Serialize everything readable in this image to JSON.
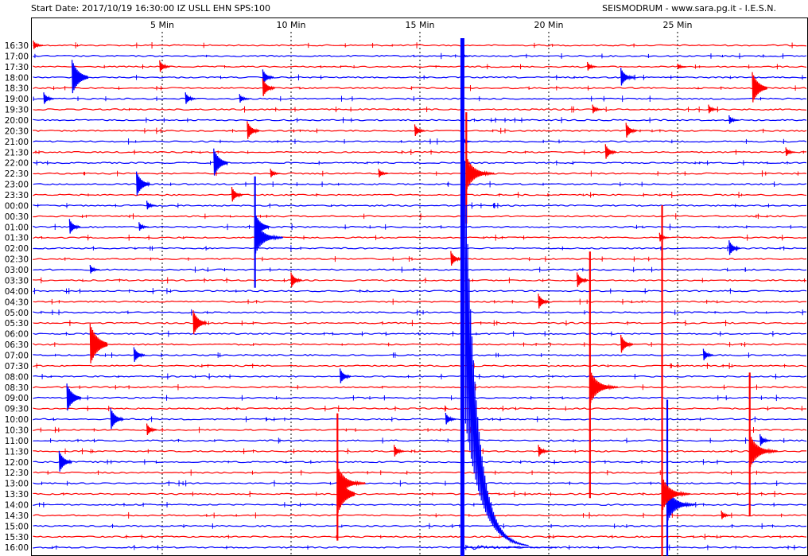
{
  "header": {
    "start_info": "Start Date: 2017/10/19 16:30:00 IZ USLL EHN SPS:100",
    "credit": "SEISMODRUM - www.sara.pg.it - I.E.S.N."
  },
  "colors": {
    "trace_a": "#ff0000",
    "trace_b": "#0000ff",
    "grid": "#000000",
    "background": "#ffffff"
  },
  "chart_data": {
    "type": "line",
    "title": "",
    "xlabel": "",
    "ylabel": "",
    "x_unit": "Min",
    "xlim": [
      0,
      30
    ],
    "x_ticks": [
      {
        "value": 5,
        "label": "5 Min"
      },
      {
        "value": 10,
        "label": "10 Min"
      },
      {
        "value": 15,
        "label": "15 Min"
      },
      {
        "value": 20,
        "label": "20 Min"
      },
      {
        "value": 25,
        "label": "25 Min"
      }
    ],
    "grid_x": "dashed vertical at 5-minute intervals",
    "rows": [
      {
        "label": "16:30",
        "color": "red"
      },
      {
        "label": "17:00",
        "color": "blue"
      },
      {
        "label": "17:30",
        "color": "red"
      },
      {
        "label": "18:00",
        "color": "blue"
      },
      {
        "label": "18:30",
        "color": "red"
      },
      {
        "label": "19:00",
        "color": "blue"
      },
      {
        "label": "19:30",
        "color": "red"
      },
      {
        "label": "20:00",
        "color": "blue"
      },
      {
        "label": "20:30",
        "color": "red"
      },
      {
        "label": "21:00",
        "color": "blue"
      },
      {
        "label": "21:30",
        "color": "red"
      },
      {
        "label": "22:00",
        "color": "blue"
      },
      {
        "label": "22:30",
        "color": "red"
      },
      {
        "label": "23:00",
        "color": "blue"
      },
      {
        "label": "23:30",
        "color": "red"
      },
      {
        "label": "00:00",
        "color": "blue"
      },
      {
        "label": "00:30",
        "color": "red"
      },
      {
        "label": "01:00",
        "color": "blue"
      },
      {
        "label": "01:30",
        "color": "red"
      },
      {
        "label": "02:00",
        "color": "blue"
      },
      {
        "label": "02:30",
        "color": "red"
      },
      {
        "label": "03:00",
        "color": "blue"
      },
      {
        "label": "03:30",
        "color": "red"
      },
      {
        "label": "04:00",
        "color": "blue"
      },
      {
        "label": "04:30",
        "color": "red"
      },
      {
        "label": "05:00",
        "color": "blue"
      },
      {
        "label": "05:30",
        "color": "red"
      },
      {
        "label": "06:00",
        "color": "blue"
      },
      {
        "label": "06:30",
        "color": "red"
      },
      {
        "label": "07:00",
        "color": "blue"
      },
      {
        "label": "07:30",
        "color": "red"
      },
      {
        "label": "08:00",
        "color": "blue"
      },
      {
        "label": "08:30",
        "color": "red"
      },
      {
        "label": "09:00",
        "color": "blue"
      },
      {
        "label": "09:30",
        "color": "red"
      },
      {
        "label": "10:00",
        "color": "blue"
      },
      {
        "label": "10:30",
        "color": "red"
      },
      {
        "label": "11:00",
        "color": "blue"
      },
      {
        "label": "11:30",
        "color": "red"
      },
      {
        "label": "12:00",
        "color": "blue"
      },
      {
        "label": "12:30",
        "color": "red"
      },
      {
        "label": "13:00",
        "color": "blue"
      },
      {
        "label": "13:30",
        "color": "red"
      },
      {
        "label": "14:00",
        "color": "blue"
      },
      {
        "label": "14:30",
        "color": "red"
      },
      {
        "label": "15:00",
        "color": "blue"
      },
      {
        "label": "15:30",
        "color": "red"
      },
      {
        "label": "16:00",
        "color": "blue"
      }
    ],
    "events": [
      {
        "row": 0,
        "minute": 0.0,
        "amp": 6
      },
      {
        "row": 1,
        "minute": 16.6,
        "amp": 4
      },
      {
        "row": 2,
        "minute": 4.9,
        "amp": 8
      },
      {
        "row": 2,
        "minute": 21.5,
        "amp": 6
      },
      {
        "row": 2,
        "minute": 25.0,
        "amp": 4
      },
      {
        "row": 3,
        "minute": 1.5,
        "amp": 22
      },
      {
        "row": 3,
        "minute": 8.9,
        "amp": 10
      },
      {
        "row": 3,
        "minute": 22.8,
        "amp": 12
      },
      {
        "row": 4,
        "minute": 8.9,
        "amp": 12
      },
      {
        "row": 4,
        "minute": 27.9,
        "amp": 20
      },
      {
        "row": 5,
        "minute": 0.4,
        "amp": 8
      },
      {
        "row": 5,
        "minute": 5.9,
        "amp": 8
      },
      {
        "row": 5,
        "minute": 8.0,
        "amp": 6
      },
      {
        "row": 6,
        "minute": 21.7,
        "amp": 6
      },
      {
        "row": 6,
        "minute": 26.2,
        "amp": 6
      },
      {
        "row": 7,
        "minute": 27.0,
        "amp": 6
      },
      {
        "row": 8,
        "minute": 8.3,
        "amp": 12
      },
      {
        "row": 8,
        "minute": 14.8,
        "amp": 8
      },
      {
        "row": 8,
        "minute": 23.0,
        "amp": 10
      },
      {
        "row": 9,
        "minute": 16.6,
        "amp": 6
      },
      {
        "row": 10,
        "minute": 22.2,
        "amp": 10
      },
      {
        "row": 10,
        "minute": 29.2,
        "amp": 6
      },
      {
        "row": 11,
        "minute": 7.0,
        "amp": 18
      },
      {
        "row": 12,
        "minute": 9.2,
        "amp": 6
      },
      {
        "row": 12,
        "minute": 13.4,
        "amp": 6
      },
      {
        "row": 13,
        "minute": 4.0,
        "amp": 16
      },
      {
        "row": 14,
        "minute": 7.7,
        "amp": 10
      },
      {
        "row": 15,
        "minute": 4.4,
        "amp": 6
      },
      {
        "row": 17,
        "minute": 1.4,
        "amp": 10
      },
      {
        "row": 17,
        "minute": 4.1,
        "amp": 6
      },
      {
        "row": 17,
        "minute": 8.6,
        "amp": 18
      },
      {
        "row": 18,
        "minute": 24.3,
        "amp": 6
      },
      {
        "row": 19,
        "minute": 27.0,
        "amp": 10
      },
      {
        "row": 20,
        "minute": 16.2,
        "amp": 10
      },
      {
        "row": 21,
        "minute": 2.2,
        "amp": 6
      },
      {
        "row": 22,
        "minute": 10.0,
        "amp": 10
      },
      {
        "row": 22,
        "minute": 21.1,
        "amp": 10
      },
      {
        "row": 24,
        "minute": 19.6,
        "amp": 10
      },
      {
        "row": 26,
        "minute": 6.2,
        "amp": 16
      },
      {
        "row": 28,
        "minute": 2.2,
        "amp": 26
      },
      {
        "row": 28,
        "minute": 22.8,
        "amp": 12
      },
      {
        "row": 29,
        "minute": 3.9,
        "amp": 10
      },
      {
        "row": 29,
        "minute": 26.0,
        "amp": 8
      },
      {
        "row": 31,
        "minute": 11.9,
        "amp": 10
      },
      {
        "row": 33,
        "minute": 1.3,
        "amp": 18
      },
      {
        "row": 35,
        "minute": 3.0,
        "amp": 14
      },
      {
        "row": 35,
        "minute": 16.0,
        "amp": 8
      },
      {
        "row": 36,
        "minute": 4.4,
        "amp": 8
      },
      {
        "row": 37,
        "minute": 28.2,
        "amp": 8
      },
      {
        "row": 38,
        "minute": 14.0,
        "amp": 8
      },
      {
        "row": 38,
        "minute": 19.6,
        "amp": 8
      },
      {
        "row": 39,
        "minute": 1.0,
        "amp": 14
      },
      {
        "row": 42,
        "minute": 11.8,
        "amp": 26
      },
      {
        "row": 44,
        "minute": 26.7,
        "amp": 6
      }
    ],
    "long_events": [
      {
        "row": 18,
        "minute": 8.6,
        "color": "blue",
        "height": 140
      },
      {
        "row": 41,
        "minute": 11.8,
        "color": "red",
        "height": 160
      },
      {
        "row": 32,
        "minute": 21.6,
        "color": "red",
        "height": 310
      },
      {
        "row": 38,
        "minute": 27.8,
        "color": "red",
        "height": 180
      },
      {
        "row": 43,
        "minute": 24.6,
        "color": "blue",
        "height": 240
      },
      {
        "row": 42,
        "minute": 24.4,
        "color": "red",
        "height": 660
      },
      {
        "row": 12,
        "minute": 16.8,
        "color": "red",
        "height": 140
      }
    ],
    "dominant_event": {
      "minute": 16.65,
      "color": "blue",
      "coda_to_minute": 20.3
    }
  }
}
